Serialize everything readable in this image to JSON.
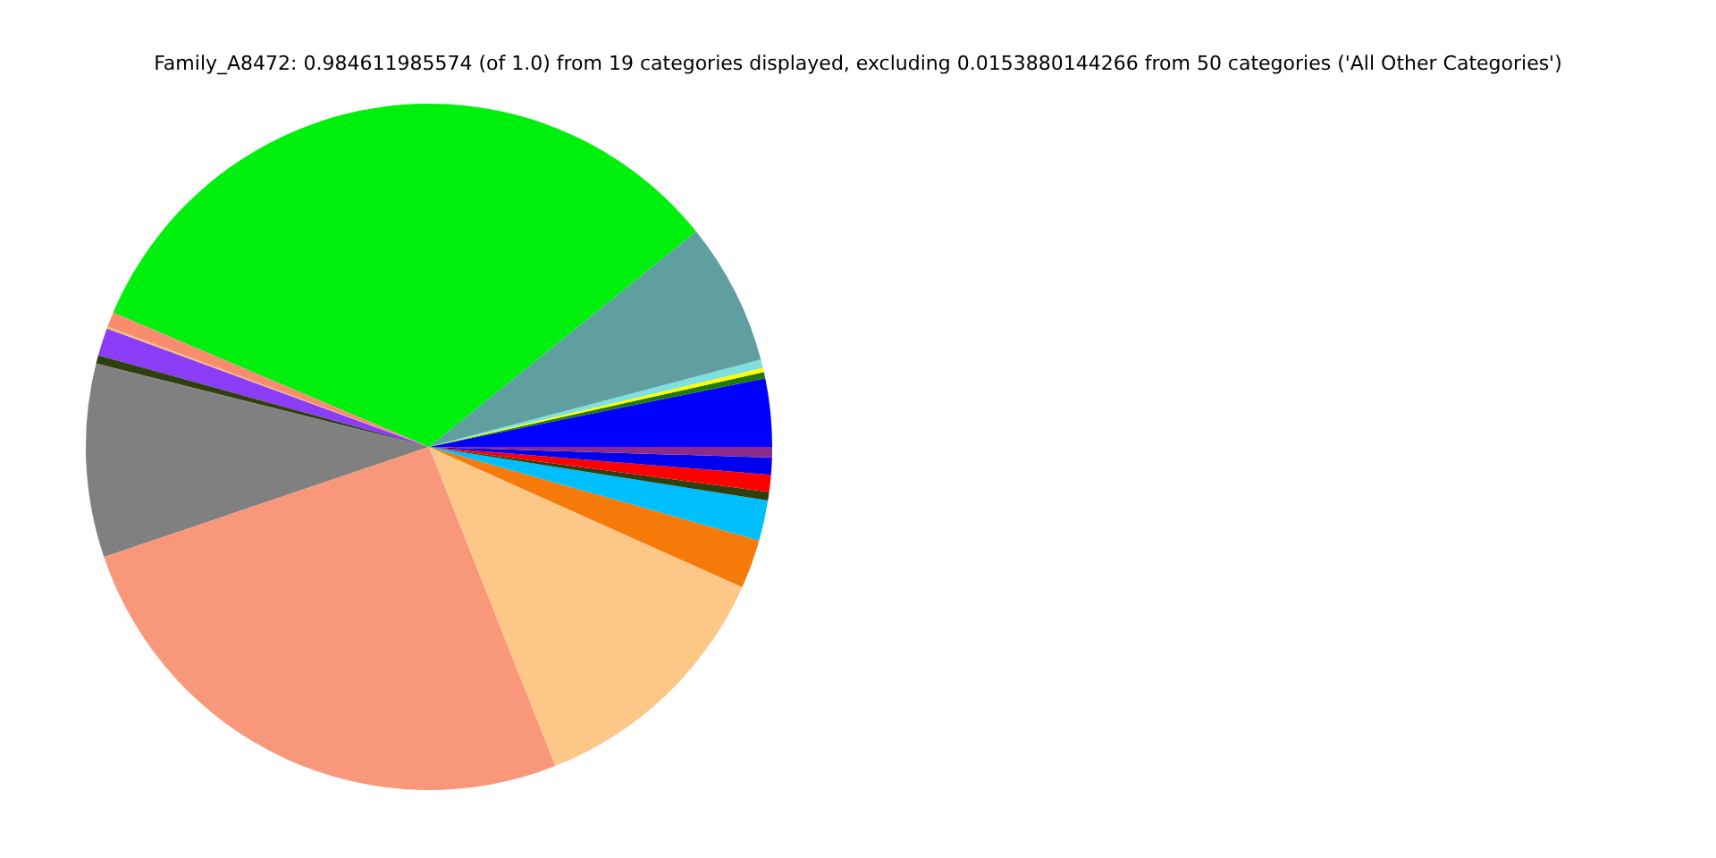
{
  "chart_data": {
    "type": "pie",
    "title": "Family_A8472: 0.984611985574 (of 1.0) from 19 categories displayed, excluding 0.0153880144266 from 50 categories ('All Other Categories')",
    "categories": [
      null,
      null,
      null,
      null,
      null,
      null,
      null,
      null,
      null,
      null,
      null,
      null,
      null,
      null,
      null,
      null,
      null,
      null,
      null
    ],
    "values": [
      3.2,
      0.3,
      0.2,
      0.4,
      6.7,
      32.8,
      0.7,
      0.1,
      1.3,
      0.4,
      9.1,
      25.8,
      12.3,
      2.3,
      1.9,
      0.4,
      0.8,
      0.8,
      0.5
    ],
    "colors": [
      "#0000ff",
      "#1f7a0a",
      "#ffff00",
      "#7fe0e0",
      "#5f9f9f",
      "#00f00e",
      "#fa8c6e",
      "#f0c080",
      "#8b3cf7",
      "#2f4010",
      "#808080",
      "#f9977a",
      "#fdc788",
      "#f57a0a",
      "#00bfff",
      "#2f4010",
      "#ff0000",
      "#0000ee",
      "#8b2b8b"
    ],
    "legend": false
  }
}
